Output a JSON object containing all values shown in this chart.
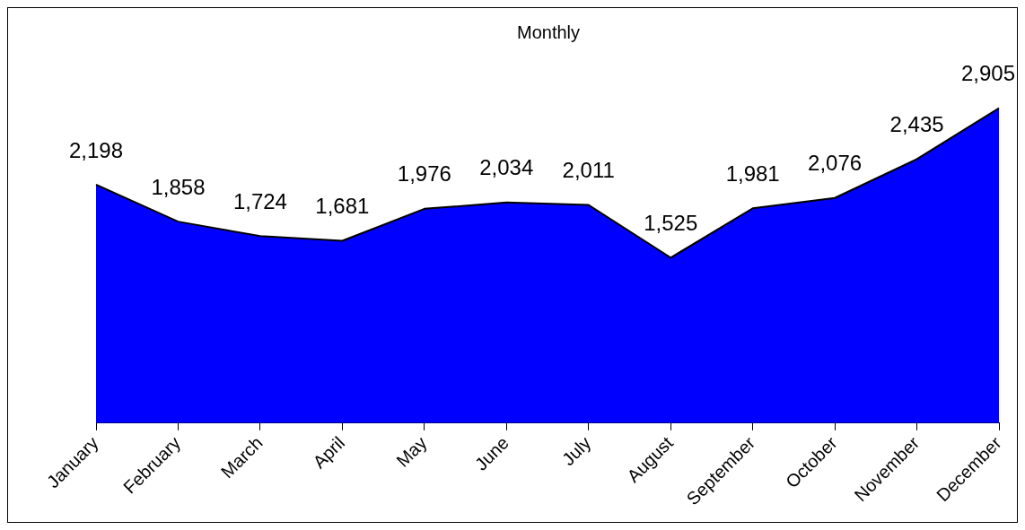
{
  "chart_data": {
    "type": "area",
    "title": "Monthly",
    "categories": [
      "January",
      "February",
      "March",
      "April",
      "May",
      "June",
      "July",
      "August",
      "September",
      "October",
      "November",
      "December"
    ],
    "values": [
      2198,
      1858,
      1724,
      1681,
      1976,
      2034,
      2011,
      1525,
      1981,
      2076,
      2435,
      2905
    ],
    "value_labels": [
      "2,198",
      "1,858",
      "1,724",
      "1,681",
      "1,976",
      "2,034",
      "2,011",
      "1,525",
      "1,981",
      "2,076",
      "2,435",
      "2,905"
    ],
    "color": "#0000ff",
    "grid": false,
    "legend": false
  }
}
